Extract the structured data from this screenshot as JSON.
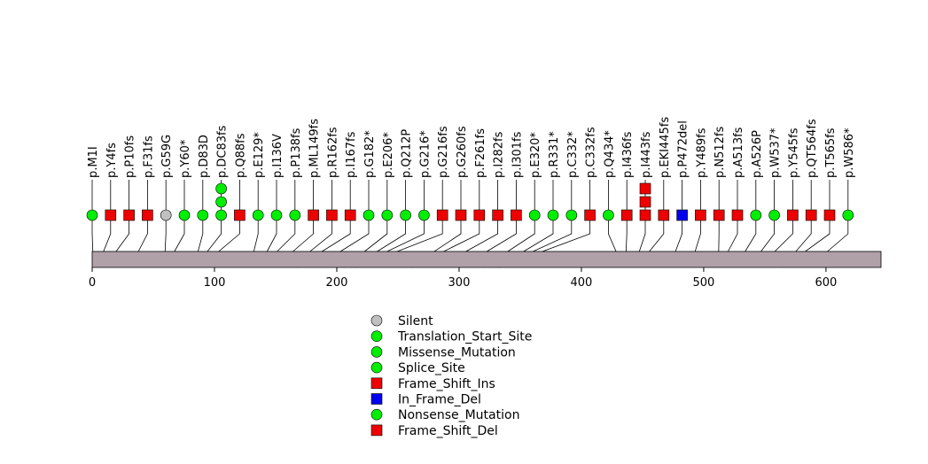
{
  "chart_data": {
    "type": "lollipop",
    "xlim": [
      0,
      645
    ],
    "x_ticks": [
      0,
      100,
      200,
      300,
      400,
      500,
      600
    ],
    "protein_bar_color": "#b0a0a8",
    "mutations": [
      {
        "label": "p.M1I",
        "pos": 1,
        "kind": "Translation_Start_Site",
        "count": 1
      },
      {
        "label": "p.Y4fs",
        "pos": 4,
        "kind": "Frame_Shift_Ins",
        "count": 1
      },
      {
        "label": "p.P10fs",
        "pos": 10,
        "kind": "Frame_Shift_Del",
        "count": 1
      },
      {
        "label": "p.F31fs",
        "pos": 31,
        "kind": "Frame_Shift_Del",
        "count": 1
      },
      {
        "label": "p.G59G",
        "pos": 59,
        "kind": "Silent",
        "count": 1
      },
      {
        "label": "p.Y60*",
        "pos": 60,
        "kind": "Nonsense_Mutation",
        "count": 1
      },
      {
        "label": "p.D83D",
        "pos": 83,
        "kind": "Splice_Site",
        "count": 1
      },
      {
        "label": "p.DC83fs",
        "pos": 84,
        "kind": "Nonsense_Mutation",
        "count": 3
      },
      {
        "label": "p.Q88fs",
        "pos": 88,
        "kind": "Frame_Shift_Del",
        "count": 1
      },
      {
        "label": "p.E129*",
        "pos": 129,
        "kind": "Nonsense_Mutation",
        "count": 1
      },
      {
        "label": "p.I136V",
        "pos": 136,
        "kind": "Missense_Mutation",
        "count": 1
      },
      {
        "label": "p.P138fs",
        "pos": 138,
        "kind": "Missense_Mutation",
        "count": 1
      },
      {
        "label": "p.ML149fs",
        "pos": 149,
        "kind": "Frame_Shift_Del",
        "count": 1
      },
      {
        "label": "p.R162fs",
        "pos": 162,
        "kind": "Frame_Shift_Del",
        "count": 1
      },
      {
        "label": "p.I167fs",
        "pos": 167,
        "kind": "Frame_Shift_Del",
        "count": 1
      },
      {
        "label": "p.G182*",
        "pos": 182,
        "kind": "Nonsense_Mutation",
        "count": 1
      },
      {
        "label": "p.E206*",
        "pos": 206,
        "kind": "Nonsense_Mutation",
        "count": 1
      },
      {
        "label": "p.Q212P",
        "pos": 212,
        "kind": "Missense_Mutation",
        "count": 1
      },
      {
        "label": "p.G216*",
        "pos": 214,
        "kind": "Nonsense_Mutation",
        "count": 1
      },
      {
        "label": "p.G216fs",
        "pos": 216,
        "kind": "Frame_Shift_Del",
        "count": 1
      },
      {
        "label": "p.G260fs",
        "pos": 260,
        "kind": "Frame_Shift_Del",
        "count": 1
      },
      {
        "label": "p.F261fs",
        "pos": 261,
        "kind": "Frame_Shift_Del",
        "count": 1
      },
      {
        "label": "p.I282fs",
        "pos": 282,
        "kind": "Frame_Shift_Del",
        "count": 1
      },
      {
        "label": "p.I301fs",
        "pos": 301,
        "kind": "Frame_Shift_Del",
        "count": 1
      },
      {
        "label": "p.E320*",
        "pos": 320,
        "kind": "Nonsense_Mutation",
        "count": 1
      },
      {
        "label": "p.R331*",
        "pos": 331,
        "kind": "Nonsense_Mutation",
        "count": 1
      },
      {
        "label": "p.C332*",
        "pos": 332,
        "kind": "Nonsense_Mutation",
        "count": 1
      },
      {
        "label": "p.C332fs",
        "pos": 333,
        "kind": "Frame_Shift_Del",
        "count": 1
      },
      {
        "label": "p.Q434*",
        "pos": 434,
        "kind": "Nonsense_Mutation",
        "count": 1
      },
      {
        "label": "p.I436fs",
        "pos": 436,
        "kind": "Frame_Shift_Del",
        "count": 1
      },
      {
        "label": "p.I443fs",
        "pos": 443,
        "kind": "Frame_Shift_Del",
        "count": 3
      },
      {
        "label": "p.EKI445fs",
        "pos": 445,
        "kind": "Frame_Shift_Del",
        "count": 1
      },
      {
        "label": "p.P472del",
        "pos": 472,
        "kind": "In_Frame_Del",
        "count": 1
      },
      {
        "label": "p.Y489fs",
        "pos": 489,
        "kind": "Frame_Shift_Del",
        "count": 1
      },
      {
        "label": "p.N512fs",
        "pos": 512,
        "kind": "Frame_Shift_Del",
        "count": 1
      },
      {
        "label": "p.A513fs",
        "pos": 513,
        "kind": "Frame_Shift_Del",
        "count": 1
      },
      {
        "label": "p.A526P",
        "pos": 526,
        "kind": "Missense_Mutation",
        "count": 1
      },
      {
        "label": "p.W537*",
        "pos": 537,
        "kind": "Nonsense_Mutation",
        "count": 1
      },
      {
        "label": "p.Y545fs",
        "pos": 545,
        "kind": "Frame_Shift_Del",
        "count": 1
      },
      {
        "label": "p.QT564fs",
        "pos": 564,
        "kind": "Frame_Shift_Del",
        "count": 1
      },
      {
        "label": "p.T565fs",
        "pos": 565,
        "kind": "Frame_Shift_Del",
        "count": 1
      },
      {
        "label": "p.W586*",
        "pos": 586,
        "kind": "Nonsense_Mutation",
        "count": 1
      }
    ],
    "legend": [
      {
        "label": "Silent",
        "shape": "circle",
        "color": "#c0c0c0"
      },
      {
        "label": "Translation_Start_Site",
        "shape": "circle",
        "color": "#00ee00"
      },
      {
        "label": "Missense_Mutation",
        "shape": "circle",
        "color": "#00ee00"
      },
      {
        "label": "Splice_Site",
        "shape": "circle",
        "color": "#00ee00"
      },
      {
        "label": "Frame_Shift_Ins",
        "shape": "square",
        "color": "#ee0000"
      },
      {
        "label": "In_Frame_Del",
        "shape": "square",
        "color": "#0000ee"
      },
      {
        "label": "Nonsense_Mutation",
        "shape": "circle",
        "color": "#00ee00"
      },
      {
        "label": "Frame_Shift_Del",
        "shape": "square",
        "color": "#ee0000"
      }
    ]
  }
}
